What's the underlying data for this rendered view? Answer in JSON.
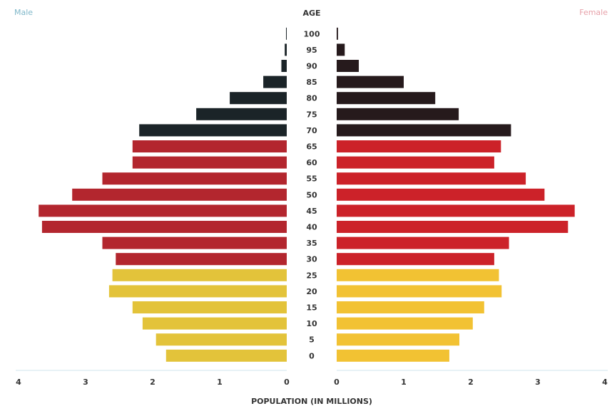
{
  "chart_data": {
    "type": "bar",
    "orientation": "population-pyramid",
    "left_label": "Male",
    "center_label": "AGE",
    "right_label": "Female",
    "xlabel": "POPULATION (IN MILLIONS)",
    "xlim": [
      0,
      4
    ],
    "x_ticks": [
      "4",
      "3",
      "2",
      "1",
      "0",
      "0",
      "1",
      "2",
      "3",
      "4"
    ],
    "categories": [
      "100",
      "95",
      "90",
      "85",
      "80",
      "75",
      "70",
      "65",
      "60",
      "55",
      "50",
      "45",
      "40",
      "35",
      "30",
      "25",
      "20",
      "15",
      "10",
      "5",
      "0"
    ],
    "series": [
      {
        "side": "left",
        "values": [
          0.01,
          0.03,
          0.08,
          0.35,
          0.85,
          1.35,
          2.2,
          2.3,
          2.3,
          2.75,
          3.2,
          3.7,
          3.65,
          2.75,
          2.55,
          2.6,
          2.65,
          2.3,
          2.15,
          1.95,
          1.8
        ]
      },
      {
        "side": "right",
        "values": [
          0.02,
          0.12,
          0.33,
          1.0,
          1.47,
          1.82,
          2.6,
          2.45,
          2.35,
          2.82,
          3.1,
          3.55,
          3.45,
          2.57,
          2.35,
          2.42,
          2.46,
          2.2,
          2.03,
          1.83,
          1.68
        ]
      }
    ],
    "age_groups": [
      {
        "ages": [
          "100",
          "95",
          "90",
          "85",
          "80",
          "75",
          "70"
        ],
        "left_color": "#1b2428",
        "right_color": "#261a1c"
      },
      {
        "ages": [
          "65",
          "60",
          "55",
          "50",
          "45",
          "40",
          "35",
          "30"
        ],
        "left_color": "#b3262e",
        "right_color": "#cc2229"
      },
      {
        "ages": [
          "25",
          "20",
          "15",
          "10",
          "5",
          "0"
        ],
        "left_color": "#e3c33a",
        "right_color": "#f2c233"
      }
    ],
    "grid": false
  }
}
